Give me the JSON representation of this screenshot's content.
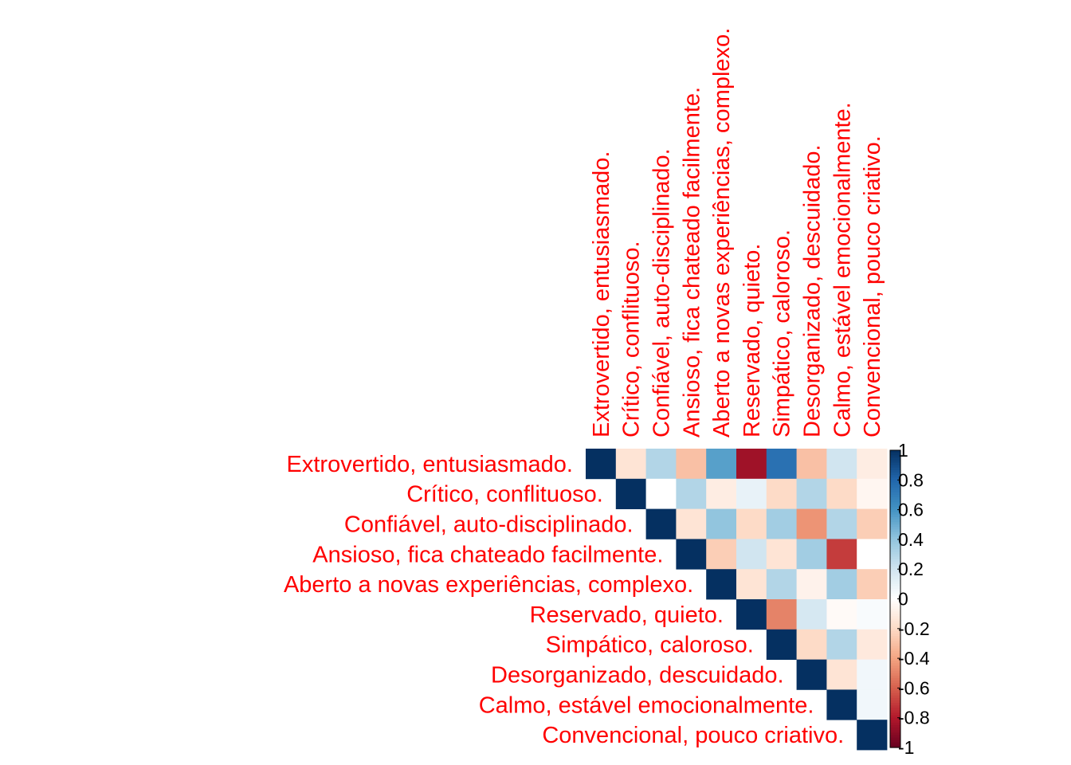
{
  "chart_data": {
    "type": "heatmap",
    "title": "",
    "layout": "upper-triangular correlation matrix",
    "variables": [
      "Extrovertido, entusiasmado.",
      "Crítico, conflituoso.",
      "Confiável, auto-disciplinado.",
      "Ansioso, fica chateado facilmente.",
      "Aberto a novas experiências, complexo.",
      "Reservado, quieto.",
      "Simpático, caloroso.",
      "Desorganizado, descuidado.",
      "Calmo, estável emocionalmente.",
      "Convencional, pouco criativo."
    ],
    "matrix": [
      [
        1,
        -0.15,
        0.3,
        -0.3,
        0.55,
        -0.85,
        0.75,
        -0.3,
        0.2,
        -0.1
      ],
      [
        null,
        1,
        0.0,
        0.3,
        -0.1,
        0.1,
        -0.2,
        0.3,
        -0.2,
        -0.05
      ],
      [
        null,
        null,
        1,
        -0.15,
        0.4,
        -0.2,
        0.35,
        -0.45,
        0.3,
        -0.25
      ],
      [
        null,
        null,
        null,
        1,
        -0.25,
        0.2,
        -0.15,
        0.35,
        -0.7,
        0.0
      ],
      [
        null,
        null,
        null,
        null,
        1,
        -0.15,
        0.3,
        -0.07,
        0.35,
        -0.25
      ],
      [
        null,
        null,
        null,
        null,
        null,
        1,
        -0.5,
        0.18,
        -0.03,
        0.03
      ],
      [
        null,
        null,
        null,
        null,
        null,
        null,
        1,
        -0.2,
        0.3,
        -0.12
      ],
      [
        null,
        null,
        null,
        null,
        null,
        null,
        null,
        1,
        -0.15,
        0.06
      ],
      [
        null,
        null,
        null,
        null,
        null,
        null,
        null,
        null,
        1,
        0.06
      ],
      [
        null,
        null,
        null,
        null,
        null,
        null,
        null,
        null,
        null,
        1
      ]
    ],
    "colorbar": {
      "range": [
        -1,
        1
      ],
      "ticks": [
        "1",
        "0.8",
        "0.6",
        "0.4",
        "0.2",
        "0",
        "-0.2",
        "-0.4",
        "-0.6",
        "-0.8",
        "-1"
      ],
      "colors": [
        "#67001F",
        "#B2182B",
        "#D6604D",
        "#F4A582",
        "#FDDBC7",
        "#FFFFFF",
        "#D1E5F0",
        "#92C5DE",
        "#4393C3",
        "#2166AC",
        "#053061"
      ]
    },
    "label_color": "#ff0000",
    "grid": false
  }
}
